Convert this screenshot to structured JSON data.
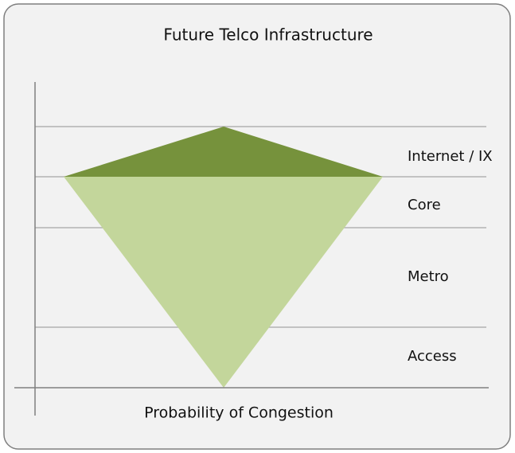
{
  "title": "Future Telco Infrastructure",
  "x_axis_label": "Probability of Congestion",
  "layers": [
    {
      "label": "Internet / IX"
    },
    {
      "label": "Core"
    },
    {
      "label": "Metro"
    },
    {
      "label": "Access"
    }
  ]
}
